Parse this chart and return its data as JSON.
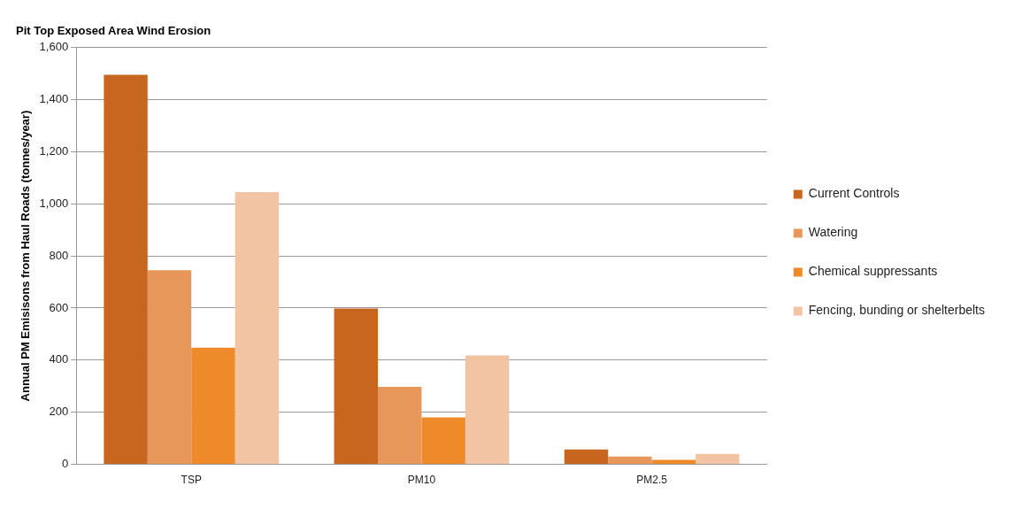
{
  "chart_data": {
    "type": "bar",
    "title": "Pit Top Exposed Area Wind Erosion",
    "ylabel": "Annual PM Emisisons from Haul Roads (tonnes/year)",
    "categories": [
      "TSP",
      "PM10",
      "PM2.5"
    ],
    "series": [
      {
        "name": "Current Controls",
        "color": "#c8651e",
        "values": [
          1495,
          598,
          57
        ]
      },
      {
        "name": "Watering",
        "color": "#e8975a",
        "values": [
          745,
          298,
          30
        ]
      },
      {
        "name": "Chemical suppressants",
        "color": "#ee8a2a",
        "values": [
          448,
          180,
          17
        ]
      },
      {
        "name": "Fencing, bunding or shelterbelts",
        "color": "#f2c4a4",
        "values": [
          1045,
          418,
          40
        ]
      }
    ],
    "ylim": [
      0,
      1600
    ],
    "yticks": [
      {
        "value": 0,
        "label": "0"
      },
      {
        "value": 200,
        "label": "200"
      },
      {
        "value": 400,
        "label": "400"
      },
      {
        "value": 600,
        "label": "600"
      },
      {
        "value": 800,
        "label": "800"
      },
      {
        "value": 1000,
        "label": "1,000"
      },
      {
        "value": 1200,
        "label": "1,200"
      },
      {
        "value": 1400,
        "label": "1,400"
      },
      {
        "value": 1600,
        "label": "1,600"
      }
    ],
    "grid": "y",
    "legend": "right"
  }
}
